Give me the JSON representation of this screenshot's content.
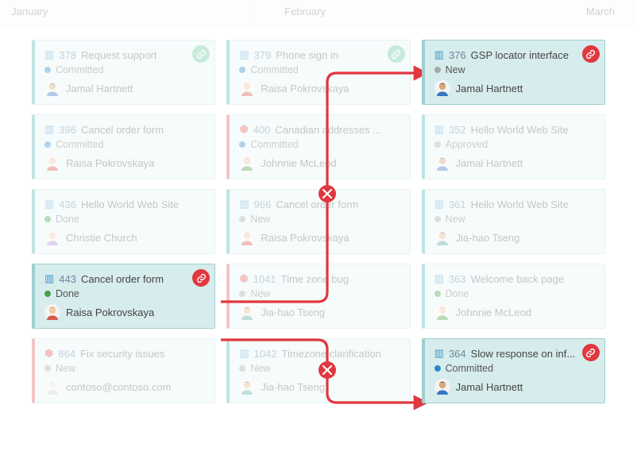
{
  "colors": {
    "card_bg": "#e7f4f4",
    "card_border": "#bfe0e0",
    "card_accent_default": "#5db2b2",
    "card_accent_bug": "#d66",
    "connector": "#e1373f",
    "badge_green": "#6cc8a0",
    "badge_red": "#e1373f",
    "state": {
      "Committed": "#2e88c7",
      "Done": "#4a9e4a",
      "New": "#a8a8a8",
      "Approved": "#a8a8a8"
    }
  },
  "header": {
    "january": "January",
    "february": "February",
    "march": "March"
  },
  "avatars": {
    "jamal": {
      "hair": "#2b2b2b",
      "skin": "#d8a878",
      "shirt": "#3a76c2"
    },
    "raisa": {
      "hair": "#d28b2e",
      "skin": "#f1c9a3",
      "shirt": "#d6584d"
    },
    "christie": {
      "hair": "#e8c25a",
      "skin": "#f1c9a3",
      "shirt": "#a98fd1"
    },
    "johnnie": {
      "hair": "#c96b27",
      "skin": "#f1c9a3",
      "shirt": "#4a9e4a"
    },
    "jiahao": {
      "hair": "#2b2b2b",
      "skin": "#e6b98c",
      "shirt": "#5ba9a0"
    },
    "generic": {
      "hair": "#c9c9c9",
      "skin": "#e6e6e6",
      "shirt": "#d0d0d0"
    }
  },
  "columns": [
    {
      "cards": [
        {
          "id": "378",
          "type": "story",
          "title": "Request support",
          "state": "Committed",
          "person": "Jamal Hartnett",
          "avatar": "jamal",
          "linked": "green"
        },
        {
          "id": "396",
          "type": "story",
          "title": "Cancel order form",
          "state": "Committed",
          "person": "Raisa Pokrovskaya",
          "avatar": "raisa"
        },
        {
          "id": "436",
          "type": "story",
          "title": "Hello World Web Site",
          "state": "Done",
          "person": "Christie Church",
          "avatar": "christie"
        },
        {
          "id": "443",
          "type": "story",
          "title": "Cancel order form",
          "state": "Done",
          "person": "Raisa Pokrovskaya",
          "avatar": "raisa",
          "linked": "red",
          "hi": true
        },
        {
          "id": "864",
          "type": "bug",
          "title": "Fix security issues",
          "state": "New",
          "person": "contoso@contoso.com",
          "avatar": "generic"
        }
      ]
    },
    {
      "cards": [
        {
          "id": "379",
          "type": "story",
          "title": "Phone sign in",
          "state": "Committed",
          "person": "Raisa Pokrovskaya",
          "avatar": "raisa",
          "linked": "green"
        },
        {
          "id": "400",
          "type": "bug",
          "title": "Canadian addresses ...",
          "state": "Committed",
          "person": "Johnnie McLeod",
          "avatar": "johnnie"
        },
        {
          "id": "966",
          "type": "story",
          "title": "Cancel order form",
          "state": "New",
          "person": "Raisa Pokrovskaya",
          "avatar": "raisa"
        },
        {
          "id": "1041",
          "type": "bug",
          "title": "Time zone bug",
          "state": "New",
          "person": "Jia-hao Tseng",
          "avatar": "jiahao"
        },
        {
          "id": "1042",
          "type": "story",
          "title": "Timezone clarification",
          "state": "New",
          "person": "Jia-hao Tseng",
          "avatar": "jiahao"
        }
      ]
    },
    {
      "cards": [
        {
          "id": "376",
          "type": "story",
          "title": "GSP locator interface",
          "state": "New",
          "person": "Jamal Hartnett",
          "avatar": "jamal",
          "linked": "red",
          "hi": true
        },
        {
          "id": "352",
          "type": "story",
          "title": "Hello World Web Site",
          "state": "Approved",
          "person": "Jamal Hartnett",
          "avatar": "jamal"
        },
        {
          "id": "361",
          "type": "story",
          "title": "Hello World Web Site",
          "state": "New",
          "person": "Jia-hao Tseng",
          "avatar": "jiahao"
        },
        {
          "id": "363",
          "type": "story",
          "title": "Welcome back page",
          "state": "Done",
          "person": "Johnnie McLeod",
          "avatar": "johnnie"
        },
        {
          "id": "364",
          "type": "story",
          "title": "Slow response on inf...",
          "state": "Committed",
          "person": "Jamal Hartnett",
          "avatar": "jamal",
          "linked": "red",
          "hi": true
        }
      ]
    }
  ]
}
